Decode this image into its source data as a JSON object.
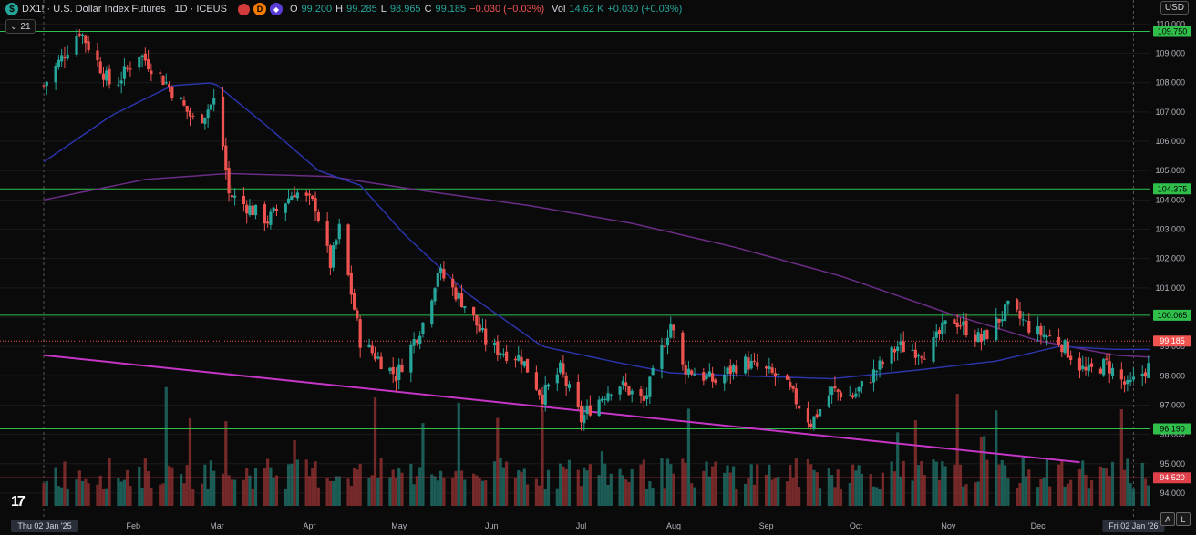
{
  "header": {
    "symbol_badge": "$",
    "title": "DX1! · U.S. Dollar Index Futures · 1D · ICEUS",
    "d_badge": "D",
    "o_label": "O",
    "o_value": "99.200",
    "h_label": "H",
    "h_value": "99.285",
    "l_label": "L",
    "l_value": "98.965",
    "c_label": "C",
    "c_value": "99.185",
    "change": "−0.030 (−0.03%)",
    "vol_label": "Vol",
    "vol_value": "14.62 K",
    "vol_change": "+0.030 (+0.03%)",
    "indicators_count": "21"
  },
  "currency": "USD",
  "colors": {
    "bull": "#26a69a",
    "bear": "#ef5350",
    "ma_short": "#2b34a8",
    "ma_long": "#6b2c86",
    "trend": "#c636c6",
    "level": "#2fbf4a",
    "level_red": "#e0404a",
    "price_line": "#ef5350"
  },
  "chart_data": {
    "type": "candlestick",
    "ylim": [
      93.5,
      110.2
    ],
    "y_ticks": [
      "110.000",
      "109.000",
      "108.000",
      "107.000",
      "106.000",
      "105.000",
      "104.000",
      "103.000",
      "102.000",
      "101.000",
      "100.000",
      "99.000",
      "98.000",
      "97.000",
      "96.000",
      "95.000",
      "94.000"
    ],
    "x_ticks": [
      "Feb",
      "Mar",
      "Apr",
      "May",
      "Jun",
      "Jul",
      "Aug",
      "Sep",
      "Oct",
      "Nov",
      "Dec"
    ],
    "x_start_label": "Thu 02 Jan '25",
    "x_end_label": "Fri 02 Jan '26",
    "horizontal_levels": [
      {
        "value": 109.75,
        "label": "109.750",
        "color": "green"
      },
      {
        "value": 104.375,
        "label": "104.375",
        "color": "green"
      },
      {
        "value": 100.065,
        "label": "100.065",
        "color": "green"
      },
      {
        "value": 96.19,
        "label": "96.190",
        "color": "green"
      },
      {
        "value": 94.52,
        "label": "94.520",
        "color": "red"
      }
    ],
    "last_price": {
      "value": 99.185,
      "label": "99.185"
    },
    "trendline": {
      "from": {
        "date": "2025-01-02",
        "value": 98.7
      },
      "to": {
        "date": "2025-12-15",
        "value": 95.05
      }
    },
    "close_path": [
      {
        "date": "2025-01-02",
        "close": 107.9
      },
      {
        "date": "2025-01-14",
        "close": 109.8
      },
      {
        "date": "2025-01-25",
        "close": 107.8
      },
      {
        "date": "2025-02-03",
        "close": 109.0
      },
      {
        "date": "2025-02-12",
        "close": 108.0
      },
      {
        "date": "2025-02-22",
        "close": 106.6
      },
      {
        "date": "2025-03-01",
        "close": 107.5
      },
      {
        "date": "2025-03-05",
        "close": 104.2
      },
      {
        "date": "2025-03-18",
        "close": 103.3
      },
      {
        "date": "2025-03-27",
        "close": 104.3
      },
      {
        "date": "2025-04-03",
        "close": 103.8
      },
      {
        "date": "2025-04-08",
        "close": 101.8
      },
      {
        "date": "2025-04-11",
        "close": 103.0
      },
      {
        "date": "2025-04-18",
        "close": 99.2
      },
      {
        "date": "2025-04-30",
        "close": 98.0
      },
      {
        "date": "2025-05-10",
        "close": 100.0
      },
      {
        "date": "2025-05-14",
        "close": 101.6
      },
      {
        "date": "2025-05-24",
        "close": 100.3
      },
      {
        "date": "2025-05-31",
        "close": 99.0
      },
      {
        "date": "2025-06-11",
        "close": 98.6
      },
      {
        "date": "2025-06-18",
        "close": 97.3
      },
      {
        "date": "2025-06-24",
        "close": 98.2
      },
      {
        "date": "2025-07-01",
        "close": 96.5
      },
      {
        "date": "2025-07-04",
        "close": 96.9
      },
      {
        "date": "2025-07-13",
        "close": 97.8
      },
      {
        "date": "2025-07-22",
        "close": 97.1
      },
      {
        "date": "2025-07-31",
        "close": 99.8
      },
      {
        "date": "2025-08-04",
        "close": 98.3
      },
      {
        "date": "2025-08-15",
        "close": 97.8
      },
      {
        "date": "2025-08-24",
        "close": 98.5
      },
      {
        "date": "2025-09-06",
        "close": 97.9
      },
      {
        "date": "2025-09-16",
        "close": 96.4
      },
      {
        "date": "2025-09-23",
        "close": 97.5
      },
      {
        "date": "2025-09-30",
        "close": 97.3
      },
      {
        "date": "2025-10-08",
        "close": 98.2
      },
      {
        "date": "2025-10-15",
        "close": 99.0
      },
      {
        "date": "2025-10-25",
        "close": 98.8
      },
      {
        "date": "2025-11-02",
        "close": 100.0
      },
      {
        "date": "2025-11-12",
        "close": 99.2
      },
      {
        "date": "2025-11-21",
        "close": 100.3
      },
      {
        "date": "2025-11-30",
        "close": 99.5
      },
      {
        "date": "2025-12-08",
        "close": 99.2
      },
      {
        "date": "2025-12-17",
        "close": 98.1
      },
      {
        "date": "2025-12-24",
        "close": 98.4
      },
      {
        "date": "2025-12-31",
        "close": 97.6
      },
      {
        "date": "2026-01-08",
        "close": 98.4
      },
      {
        "date": "2026-01-14",
        "close": 99.2
      }
    ],
    "ma_short": [
      {
        "date": "2025-01-02",
        "value": 105.3
      },
      {
        "date": "2025-01-25",
        "value": 106.9
      },
      {
        "date": "2025-02-14",
        "value": 107.9
      },
      {
        "date": "2025-02-28",
        "value": 108.0
      },
      {
        "date": "2025-03-18",
        "value": 106.5
      },
      {
        "date": "2025-04-04",
        "value": 105.0
      },
      {
        "date": "2025-04-18",
        "value": 104.5
      },
      {
        "date": "2025-05-03",
        "value": 102.8
      },
      {
        "date": "2025-05-24",
        "value": 100.8
      },
      {
        "date": "2025-06-18",
        "value": 99.0
      },
      {
        "date": "2025-07-11",
        "value": 98.5
      },
      {
        "date": "2025-07-31",
        "value": 98.1
      },
      {
        "date": "2025-08-24",
        "value": 98.0
      },
      {
        "date": "2025-09-23",
        "value": 97.9
      },
      {
        "date": "2025-10-22",
        "value": 98.2
      },
      {
        "date": "2025-11-17",
        "value": 98.5
      },
      {
        "date": "2025-12-08",
        "value": 99.0
      },
      {
        "date": "2025-12-27",
        "value": 98.9
      },
      {
        "date": "2026-01-14",
        "value": 98.9
      }
    ],
    "ma_long": [
      {
        "date": "2025-01-02",
        "value": 104.0
      },
      {
        "date": "2025-02-05",
        "value": 104.7
      },
      {
        "date": "2025-03-05",
        "value": 104.9
      },
      {
        "date": "2025-04-08",
        "value": 104.8
      },
      {
        "date": "2025-05-10",
        "value": 104.3
      },
      {
        "date": "2025-06-14",
        "value": 103.8
      },
      {
        "date": "2025-07-18",
        "value": 103.2
      },
      {
        "date": "2025-08-21",
        "value": 102.4
      },
      {
        "date": "2025-09-26",
        "value": 101.4
      },
      {
        "date": "2025-11-02",
        "value": 100.1
      },
      {
        "date": "2025-12-01",
        "value": 99.2
      },
      {
        "date": "2025-12-27",
        "value": 98.7
      },
      {
        "date": "2026-01-14",
        "value": 98.6
      }
    ]
  }
}
